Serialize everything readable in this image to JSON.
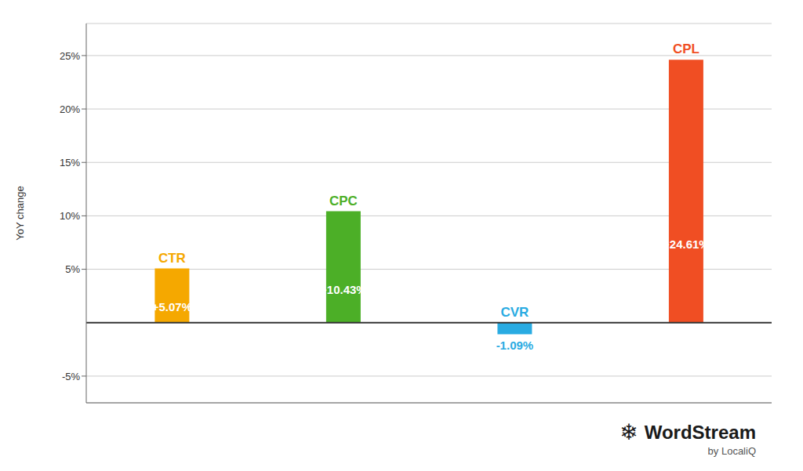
{
  "chart_data": {
    "type": "bar",
    "categories": [
      "CTR",
      "CPC",
      "CVR",
      "CPL"
    ],
    "values": [
      5.07,
      10.43,
      -1.09,
      24.61
    ],
    "colors": [
      "#F5A800",
      "#4CAF27",
      "#29ABE2",
      "#F04E23"
    ],
    "value_labels": [
      "+5.07%",
      "+10.43%",
      "-1.09%",
      "+24.61%"
    ],
    "ylabel": "YoY change",
    "ylim": [
      -7.5,
      28
    ],
    "yticks": [
      {
        "value": -5,
        "label": "-5%"
      },
      {
        "value": 5,
        "label": "5%"
      },
      {
        "value": 10,
        "label": "10%"
      },
      {
        "value": 15,
        "label": "15%"
      },
      {
        "value": 20,
        "label": "20%"
      },
      {
        "value": 25,
        "label": "25%"
      }
    ],
    "grid": true,
    "data_labels": true,
    "tick_labels": "y",
    "annotations": [
      "❄",
      "WordStream",
      "by LocaliQ"
    ]
  }
}
